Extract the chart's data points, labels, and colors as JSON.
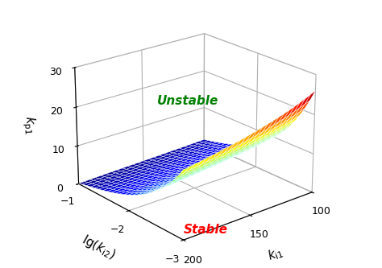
{
  "ki1_min": 100,
  "ki1_max": 200,
  "lgki2_min": -3,
  "lgki2_max": -1,
  "kp1_min": 0,
  "kp1_max": 30,
  "ki1_ticks": [
    200,
    150,
    100
  ],
  "lgki2_ticks": [
    -3,
    -2,
    -1
  ],
  "kp1_ticks": [
    0,
    10,
    20,
    30
  ],
  "xlabel": "$k_{i1}$",
  "ylabel": "$\\lg(k_{i2})$",
  "zlabel": "$k_{p1}$",
  "stable_label": "Stable",
  "unstable_label": "Unstable",
  "n_ki1": 25,
  "n_lgki2": 25,
  "elev": 22,
  "azim": -130
}
